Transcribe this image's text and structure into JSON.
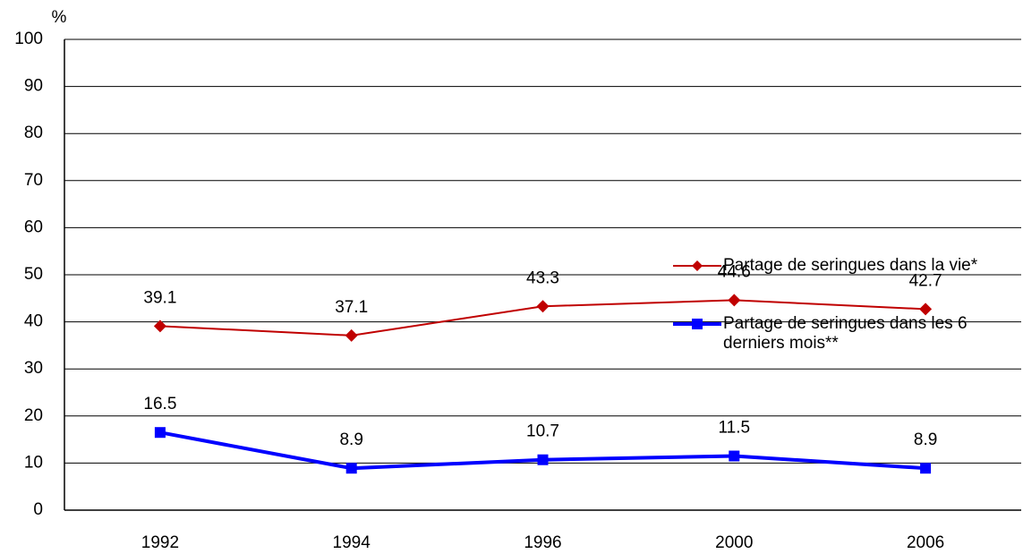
{
  "chart_data": {
    "type": "line",
    "y_label": "%",
    "categories": [
      "1992",
      "1994",
      "1996",
      "2000",
      "2006"
    ],
    "series": [
      {
        "name": "Partage de seringues dans la vie*",
        "color": "#c00000",
        "marker": "diamond",
        "values": [
          39.1,
          37.1,
          43.3,
          44.6,
          42.7
        ]
      },
      {
        "name": "Partage de seringues dans les 6 derniers mois**",
        "color": "#0000ff",
        "marker": "square",
        "values": [
          16.5,
          8.9,
          10.7,
          11.5,
          8.9
        ]
      }
    ],
    "ylim": [
      0,
      100
    ],
    "yticks": [
      0,
      10,
      20,
      30,
      40,
      50,
      60,
      70,
      80,
      90,
      100
    ],
    "grid": true
  }
}
